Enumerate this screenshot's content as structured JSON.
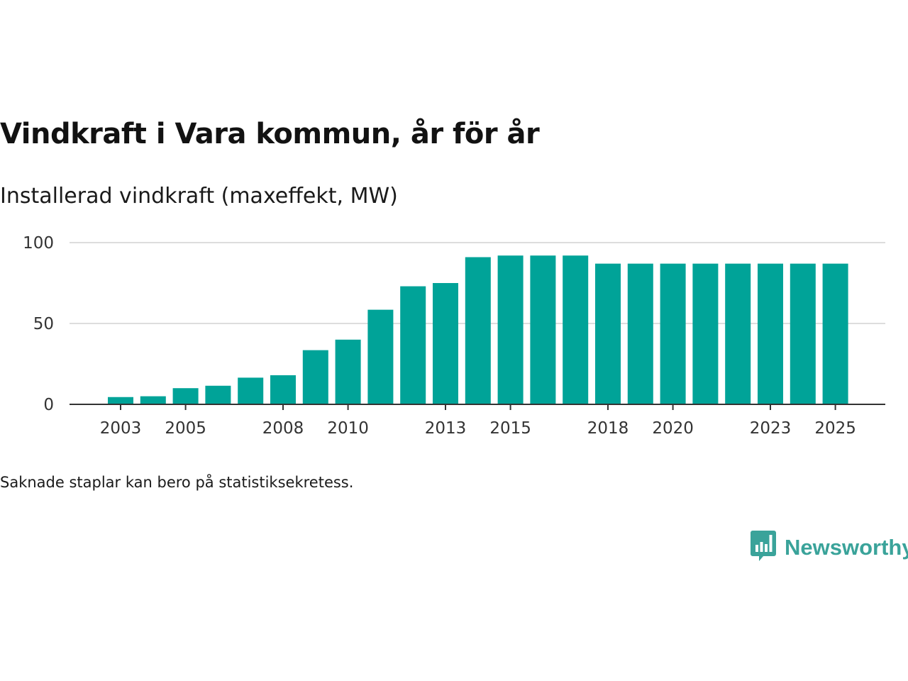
{
  "title": "Vindkraft i Vara kommun, år för år",
  "subtitle": "Installerad vindkraft (maxeffekt, MW)",
  "note": "Saknade staplar kan bero på statistiksekretess.",
  "brand": {
    "name": "Newsworthy",
    "icon": "bar-chart-speech-bubble-icon",
    "color": "#3aa39a"
  },
  "colors": {
    "bar": "#00a398",
    "grid": "#dddddd",
    "axis": "#333333"
  },
  "chart_data": {
    "type": "bar",
    "title": "Vindkraft i Vara kommun, år för år",
    "ylabel": "Installerad vindkraft (maxeffekt, MW)",
    "xlabel": "",
    "categories": [
      2003,
      2004,
      2005,
      2006,
      2007,
      2008,
      2009,
      2010,
      2011,
      2012,
      2013,
      2014,
      2015,
      2016,
      2017,
      2018,
      2019,
      2020,
      2021,
      2022,
      2023,
      2024,
      2025
    ],
    "values": [
      4.5,
      5,
      10,
      11.5,
      16.5,
      18,
      33.5,
      40,
      58.5,
      73,
      75,
      91,
      92,
      92,
      92,
      87,
      87,
      87,
      87,
      87,
      87,
      87,
      87
    ],
    "ylim": [
      0,
      100
    ],
    "yticks": [
      0,
      50,
      100
    ],
    "xtick_labels": [
      "2003",
      "2005",
      "2008",
      "2010",
      "2013",
      "2015",
      "2018",
      "2020",
      "2023",
      "2025"
    ],
    "ytick_labels": [
      "0",
      "50",
      "100"
    ],
    "grid": true
  }
}
